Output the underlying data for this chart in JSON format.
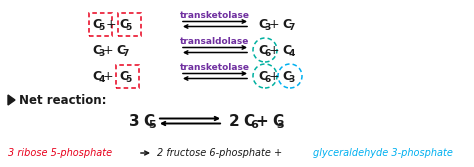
{
  "bg_color": "#ffffff",
  "red_color": "#e8001c",
  "purple_color": "#7030a0",
  "teal_color": "#00b0a0",
  "blue_color": "#00b0f0",
  "black_color": "#1a1a1a",
  "row1_enzyme": "transketolase",
  "row2_enzyme": "transaldolase",
  "row3_enzyme": "transketolase",
  "bottom_red": "3 ribose 5-phosphate",
  "bottom_black1": "2 fructose 6-phosphate +",
  "bottom_blue": "glyceraldehyde 3-phosphate"
}
